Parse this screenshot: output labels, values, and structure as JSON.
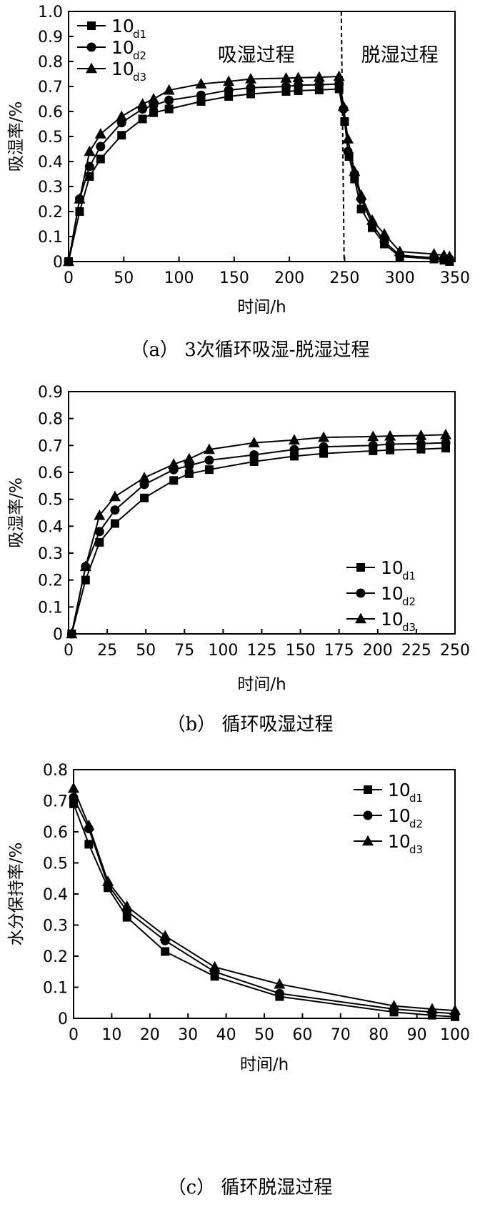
{
  "chart_data": [
    {
      "type": "line",
      "caption": "（a） 3次循环吸湿-脱湿过程",
      "xlabel": "时间/h",
      "ylabel": "吸湿率/%",
      "xlim": [
        0,
        350
      ],
      "ylim": [
        0,
        1.0
      ],
      "xticks": [
        0,
        50,
        100,
        150,
        200,
        250,
        300,
        350
      ],
      "yticks": [
        0,
        0.1,
        0.2,
        0.3,
        0.4,
        0.5,
        0.6,
        0.7,
        0.8,
        0.9,
        1.0
      ],
      "yticklabels": [
        "0",
        "0.1",
        "0.2",
        "0.3",
        "0.4",
        "0.5",
        "0.6",
        "0.7",
        "0.8",
        "0.9",
        "1.0"
      ],
      "legend_position": "top-left",
      "grid": false,
      "divider_x": 247,
      "region_labels": [
        "吸湿过程",
        "脱湿过程"
      ],
      "series": [
        {
          "name": "10",
          "subscript": "d1",
          "marker": "square",
          "x": [
            0,
            10,
            19,
            29,
            48,
            67,
            77,
            91,
            120,
            145,
            165,
            197,
            208,
            227,
            245,
            250,
            254,
            259,
            265,
            275,
            286,
            300,
            331,
            340,
            345
          ],
          "y": [
            0,
            0.2,
            0.34,
            0.41,
            0.505,
            0.57,
            0.595,
            0.61,
            0.64,
            0.66,
            0.67,
            0.68,
            0.683,
            0.686,
            0.69,
            0.56,
            0.42,
            0.33,
            0.21,
            0.135,
            0.07,
            0.02,
            0.01,
            0.005,
            0
          ]
        },
        {
          "name": "10",
          "subscript": "d2",
          "marker": "circle",
          "x": [
            0,
            10,
            19,
            29,
            48,
            67,
            77,
            91,
            120,
            145,
            165,
            197,
            208,
            227,
            245,
            249,
            253,
            259,
            265,
            275,
            286,
            300,
            331,
            340,
            345
          ],
          "y": [
            0,
            0.25,
            0.38,
            0.46,
            0.555,
            0.61,
            0.625,
            0.645,
            0.665,
            0.685,
            0.695,
            0.7,
            0.705,
            0.707,
            0.71,
            0.61,
            0.44,
            0.35,
            0.25,
            0.15,
            0.08,
            0.025,
            0.015,
            0.01,
            0.01
          ]
        },
        {
          "name": "10",
          "subscript": "d3",
          "marker": "triangle",
          "x": [
            0,
            10,
            19,
            29,
            48,
            67,
            77,
            91,
            120,
            145,
            165,
            197,
            208,
            227,
            245,
            249,
            253,
            259,
            265,
            275,
            286,
            300,
            331,
            340,
            345
          ],
          "y": [
            0,
            0.25,
            0.44,
            0.51,
            0.58,
            0.63,
            0.65,
            0.685,
            0.71,
            0.72,
            0.73,
            0.733,
            0.735,
            0.737,
            0.74,
            0.62,
            0.49,
            0.36,
            0.265,
            0.165,
            0.11,
            0.04,
            0.03,
            0.025,
            0.02
          ]
        }
      ]
    },
    {
      "type": "line",
      "caption": "（b） 循环吸湿过程",
      "xlabel": "时间/h",
      "ylabel": "吸湿率/%",
      "xlim": [
        0,
        250
      ],
      "ylim": [
        0,
        0.9
      ],
      "xticks": [
        0,
        25,
        50,
        75,
        100,
        125,
        150,
        175,
        200,
        225,
        250
      ],
      "yticks": [
        0,
        0.1,
        0.2,
        0.3,
        0.4,
        0.5,
        0.6,
        0.7,
        0.8,
        0.9
      ],
      "yticklabels": [
        "0",
        "0.1",
        "0.2",
        "0.3",
        "0.4",
        "0.5",
        "0.6",
        "0.7",
        "0.8",
        "0.9"
      ],
      "legend_position": "bottom-right",
      "grid": false,
      "series": [
        {
          "name": "10",
          "subscript": "d1",
          "marker": "square",
          "x": [
            2,
            11,
            20,
            30,
            49,
            68,
            78,
            91,
            120,
            146,
            165,
            197,
            208,
            228,
            244
          ],
          "y": [
            0,
            0.2,
            0.34,
            0.41,
            0.505,
            0.57,
            0.595,
            0.61,
            0.64,
            0.66,
            0.67,
            0.68,
            0.683,
            0.686,
            0.69
          ]
        },
        {
          "name": "10",
          "subscript": "d2",
          "marker": "circle",
          "x": [
            2,
            11,
            20,
            30,
            49,
            68,
            78,
            91,
            120,
            146,
            165,
            197,
            208,
            228,
            244
          ],
          "y": [
            0,
            0.25,
            0.38,
            0.46,
            0.555,
            0.61,
            0.625,
            0.645,
            0.665,
            0.685,
            0.695,
            0.7,
            0.705,
            0.707,
            0.71
          ]
        },
        {
          "name": "10",
          "subscript": "d3",
          "marker": "triangle",
          "x": [
            2,
            11,
            20,
            30,
            49,
            68,
            78,
            91,
            120,
            146,
            165,
            197,
            208,
            228,
            244
          ],
          "y": [
            0,
            0.25,
            0.44,
            0.51,
            0.58,
            0.63,
            0.65,
            0.685,
            0.71,
            0.72,
            0.73,
            0.733,
            0.735,
            0.737,
            0.74
          ]
        }
      ]
    },
    {
      "type": "line",
      "caption": "（c） 循环脱湿过程",
      "xlabel": "时间/h",
      "ylabel": "水分保持率/%",
      "xlim": [
        0,
        100
      ],
      "ylim": [
        0,
        0.8
      ],
      "xticks": [
        0,
        10,
        20,
        30,
        40,
        50,
        60,
        70,
        80,
        90,
        100
      ],
      "yticks": [
        0,
        0.1,
        0.2,
        0.3,
        0.4,
        0.5,
        0.6,
        0.7,
        0.8
      ],
      "yticklabels": [
        "0",
        "0.1",
        "0.2",
        "0.3",
        "0.4",
        "0.5",
        "0.6",
        "0.7",
        "0.8"
      ],
      "legend_position": "top-right",
      "grid": false,
      "series": [
        {
          "name": "10",
          "subscript": "d1",
          "marker": "square",
          "x": [
            0,
            4,
            9,
            14,
            24,
            37,
            54,
            84,
            94,
            100
          ],
          "y": [
            0.69,
            0.56,
            0.42,
            0.325,
            0.215,
            0.135,
            0.07,
            0.02,
            0.01,
            0.005
          ]
        },
        {
          "name": "10",
          "subscript": "d2",
          "marker": "circle",
          "x": [
            0,
            4,
            9,
            14,
            24,
            37,
            54,
            84,
            94,
            100
          ],
          "y": [
            0.71,
            0.61,
            0.43,
            0.345,
            0.25,
            0.15,
            0.08,
            0.03,
            0.02,
            0.015
          ]
        },
        {
          "name": "10",
          "subscript": "d3",
          "marker": "triangle",
          "x": [
            0,
            4,
            9,
            14,
            24,
            37,
            54,
            84,
            94,
            100
          ],
          "y": [
            0.74,
            0.62,
            0.44,
            0.36,
            0.265,
            0.165,
            0.11,
            0.04,
            0.03,
            0.025
          ]
        }
      ]
    }
  ]
}
